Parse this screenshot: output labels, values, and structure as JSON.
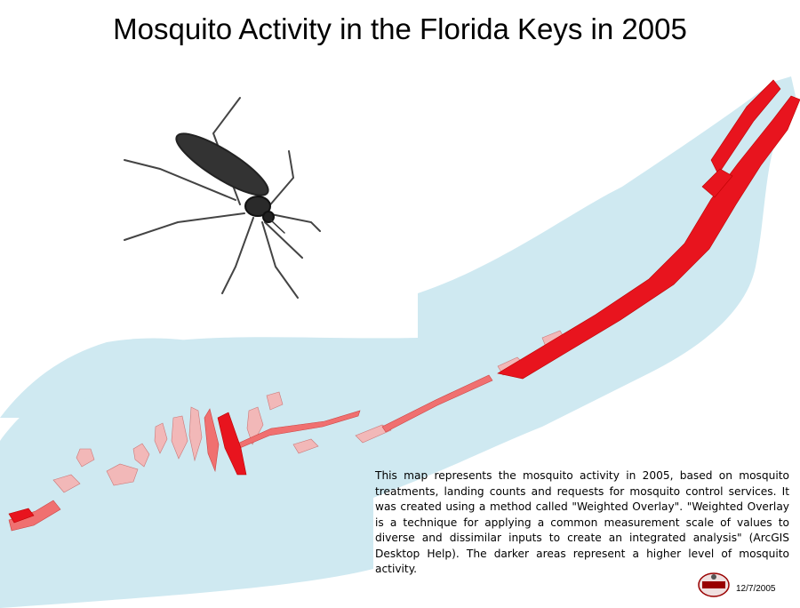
{
  "title": "Mosquito Activity in the Florida Keys in 2005",
  "description": "This map represents the mosquito activity in 2005, based on mosquito treatments, landing counts and requests for mosquito control services.  It was created using a method called \"Weighted Overlay\". \"Weighted Overlay is a technique for applying a common measurement scale of values to diverse and dissimilar inputs to create an integrated analysis\" (ArcGIS Desktop Help). The darker areas represent a higher level of mosquito activity.",
  "date": "12/7/2005",
  "colors": {
    "water": "#cfe9f1",
    "land_low": "#f2b8b8",
    "land_mid": "#f07070",
    "land_high": "#e8141e"
  },
  "icons": {
    "mosquito": "mosquito-illustration",
    "seal": "agency-seal-logo"
  }
}
